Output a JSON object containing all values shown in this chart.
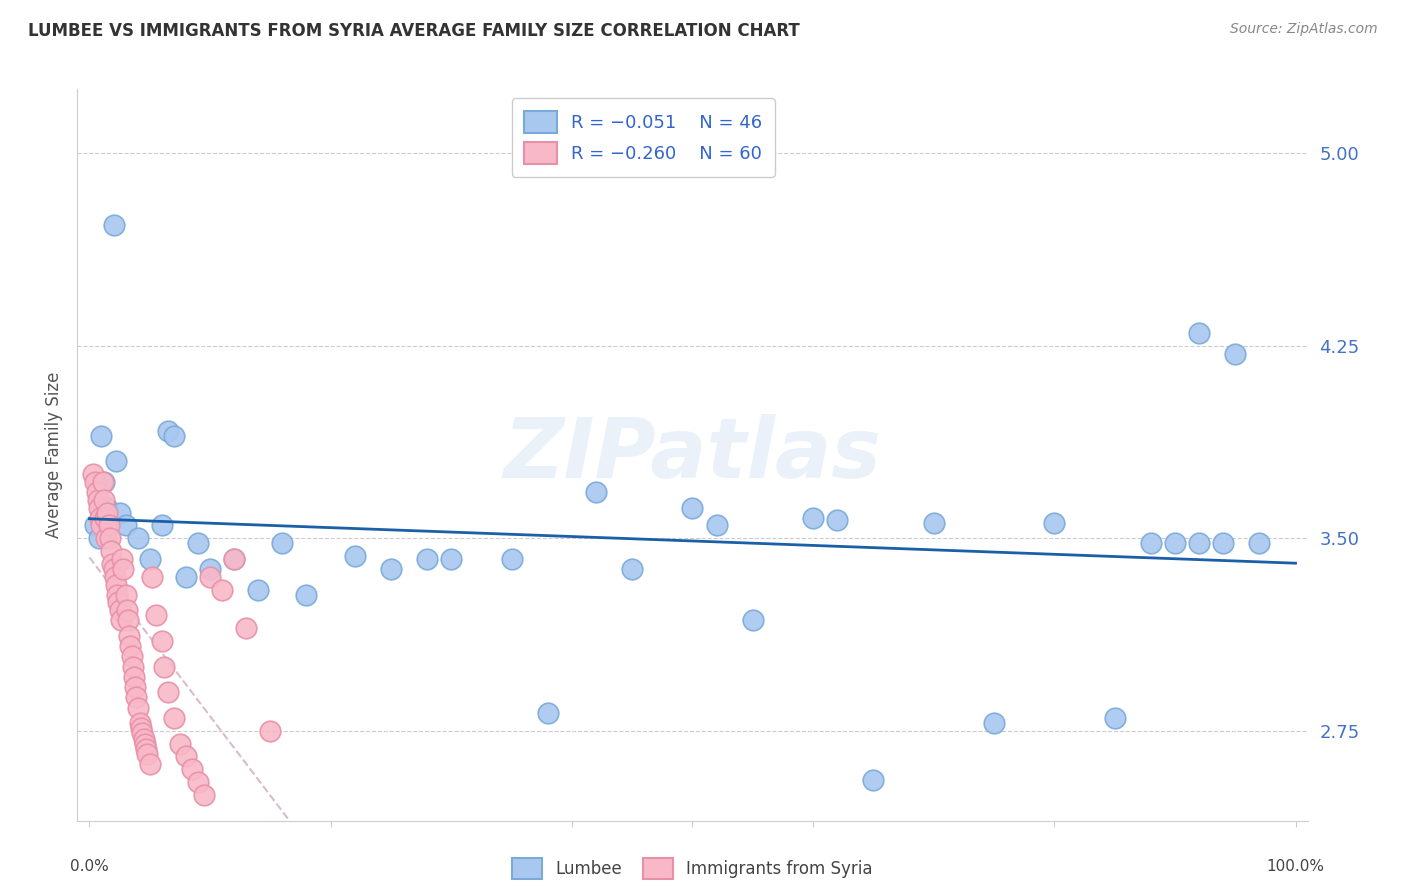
{
  "title": "LUMBEE VS IMMIGRANTS FROM SYRIA AVERAGE FAMILY SIZE CORRELATION CHART",
  "source": "Source: ZipAtlas.com",
  "ylabel": "Average Family Size",
  "watermark": "ZIPatlas",
  "yticks": [
    2.75,
    3.5,
    4.25,
    5.0
  ],
  "ylim": [
    2.4,
    5.25
  ],
  "xlim": [
    -0.01,
    1.01
  ],
  "lumbee_color": "#a8c8f0",
  "lumbee_edge": "#7aaad8",
  "syria_color": "#f8b8c8",
  "syria_edge": "#e890a8",
  "lumbee_line_color": "#1a5fa8",
  "syria_line_color": "#c8a0b8",
  "grid_color": "#cccccc",
  "background": "#ffffff",
  "lumbee_x": [
    0.02,
    0.01,
    0.012,
    0.015,
    0.005,
    0.008,
    0.022,
    0.025,
    0.03,
    0.04,
    0.05,
    0.06,
    0.065,
    0.07,
    0.08,
    0.09,
    0.1,
    0.12,
    0.14,
    0.16,
    0.18,
    0.22,
    0.25,
    0.28,
    0.3,
    0.35,
    0.38,
    0.42,
    0.45,
    0.5,
    0.52,
    0.55,
    0.6,
    0.62,
    0.65,
    0.7,
    0.75,
    0.8,
    0.85,
    0.88,
    0.9,
    0.92,
    0.95,
    0.97,
    0.92,
    0.94
  ],
  "lumbee_y": [
    4.72,
    3.9,
    3.72,
    3.62,
    3.55,
    3.5,
    3.8,
    3.6,
    3.55,
    3.5,
    3.42,
    3.55,
    3.92,
    3.9,
    3.35,
    3.48,
    3.38,
    3.42,
    3.3,
    3.48,
    3.28,
    3.43,
    3.38,
    3.42,
    3.42,
    3.42,
    2.82,
    3.68,
    3.38,
    3.62,
    3.55,
    3.18,
    3.58,
    3.57,
    2.56,
    3.56,
    2.78,
    3.56,
    2.8,
    3.48,
    3.48,
    4.3,
    4.22,
    3.48,
    3.48,
    3.48
  ],
  "syria_x": [
    0.003,
    0.005,
    0.006,
    0.007,
    0.008,
    0.009,
    0.01,
    0.011,
    0.012,
    0.013,
    0.014,
    0.015,
    0.016,
    0.017,
    0.018,
    0.019,
    0.02,
    0.021,
    0.022,
    0.023,
    0.024,
    0.025,
    0.026,
    0.027,
    0.028,
    0.03,
    0.031,
    0.032,
    0.033,
    0.034,
    0.035,
    0.036,
    0.037,
    0.038,
    0.039,
    0.04,
    0.042,
    0.043,
    0.044,
    0.045,
    0.046,
    0.047,
    0.048,
    0.05,
    0.052,
    0.055,
    0.06,
    0.062,
    0.065,
    0.07,
    0.075,
    0.08,
    0.085,
    0.09,
    0.095,
    0.1,
    0.11,
    0.12,
    0.13,
    0.15
  ],
  "syria_y": [
    3.75,
    3.72,
    3.68,
    3.65,
    3.62,
    3.58,
    3.55,
    3.72,
    3.65,
    3.58,
    3.5,
    3.6,
    3.55,
    3.5,
    3.45,
    3.4,
    3.38,
    3.35,
    3.32,
    3.28,
    3.25,
    3.22,
    3.18,
    3.42,
    3.38,
    3.28,
    3.22,
    3.18,
    3.12,
    3.08,
    3.04,
    3.0,
    2.96,
    2.92,
    2.88,
    2.84,
    2.78,
    2.76,
    2.74,
    2.72,
    2.7,
    2.68,
    2.66,
    2.62,
    3.35,
    3.2,
    3.1,
    3.0,
    2.9,
    2.8,
    2.7,
    2.65,
    2.6,
    2.55,
    2.5,
    3.35,
    3.3,
    3.42,
    3.15,
    2.75
  ]
}
